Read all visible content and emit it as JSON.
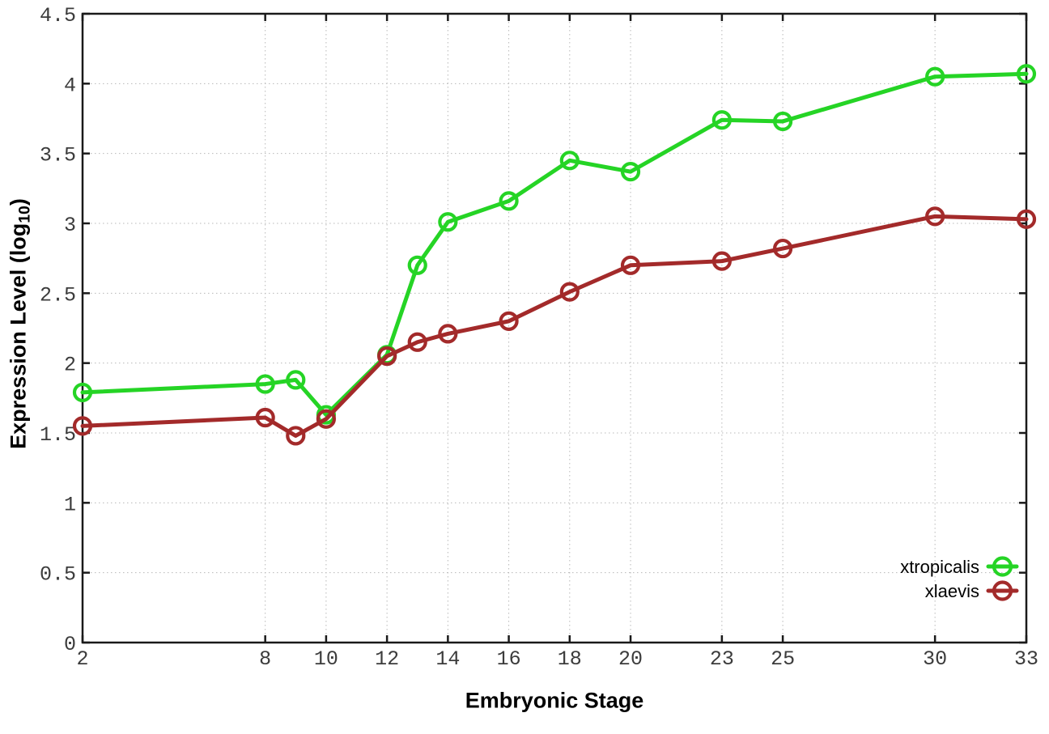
{
  "chart_data": {
    "type": "line",
    "title": "",
    "xlabel": "Embryonic Stage",
    "ylabel": "Expression Level (log10)",
    "ylabel_parts": {
      "pre": "Expression Level (log",
      "sub": "10",
      "post": ")"
    },
    "xlim": [
      2,
      33
    ],
    "ylim": [
      0,
      4.5
    ],
    "xticks": [
      2,
      8,
      10,
      12,
      14,
      16,
      18,
      20,
      23,
      25,
      30,
      33
    ],
    "xtick_labels": [
      "2",
      "8",
      "10",
      "12",
      "14",
      "16",
      "18",
      "20",
      "23",
      "25",
      "30",
      "33"
    ],
    "yticks": [
      0,
      0.5,
      1,
      1.5,
      2,
      2.5,
      3,
      3.5,
      4,
      4.5
    ],
    "ytick_labels": [
      "0",
      "0.5",
      "1",
      "1.5",
      "2",
      "2.5",
      "3",
      "3.5",
      "4",
      "4.5"
    ],
    "grid": true,
    "grid_style": "dotted",
    "legend_position": "bottom-right-inside",
    "marker": "open-circle",
    "x": [
      2,
      8,
      9,
      10,
      12,
      13,
      14,
      16,
      18,
      20,
      23,
      25,
      30,
      33
    ],
    "series": [
      {
        "name": "xtropicalis",
        "color": "#25d425",
        "values": [
          1.79,
          1.85,
          1.88,
          1.63,
          2.06,
          2.7,
          3.01,
          3.16,
          3.45,
          3.37,
          3.74,
          3.73,
          4.05,
          4.07
        ]
      },
      {
        "name": "xlaevis",
        "color": "#a32a2a",
        "values": [
          1.55,
          1.61,
          1.48,
          1.6,
          2.05,
          2.15,
          2.21,
          2.3,
          2.51,
          2.7,
          2.73,
          2.82,
          3.05,
          3.03
        ]
      }
    ],
    "colors": {
      "border": "#1a1a1a",
      "grid": "#b8b8b8",
      "tick_text": "#3c3c3c"
    }
  }
}
